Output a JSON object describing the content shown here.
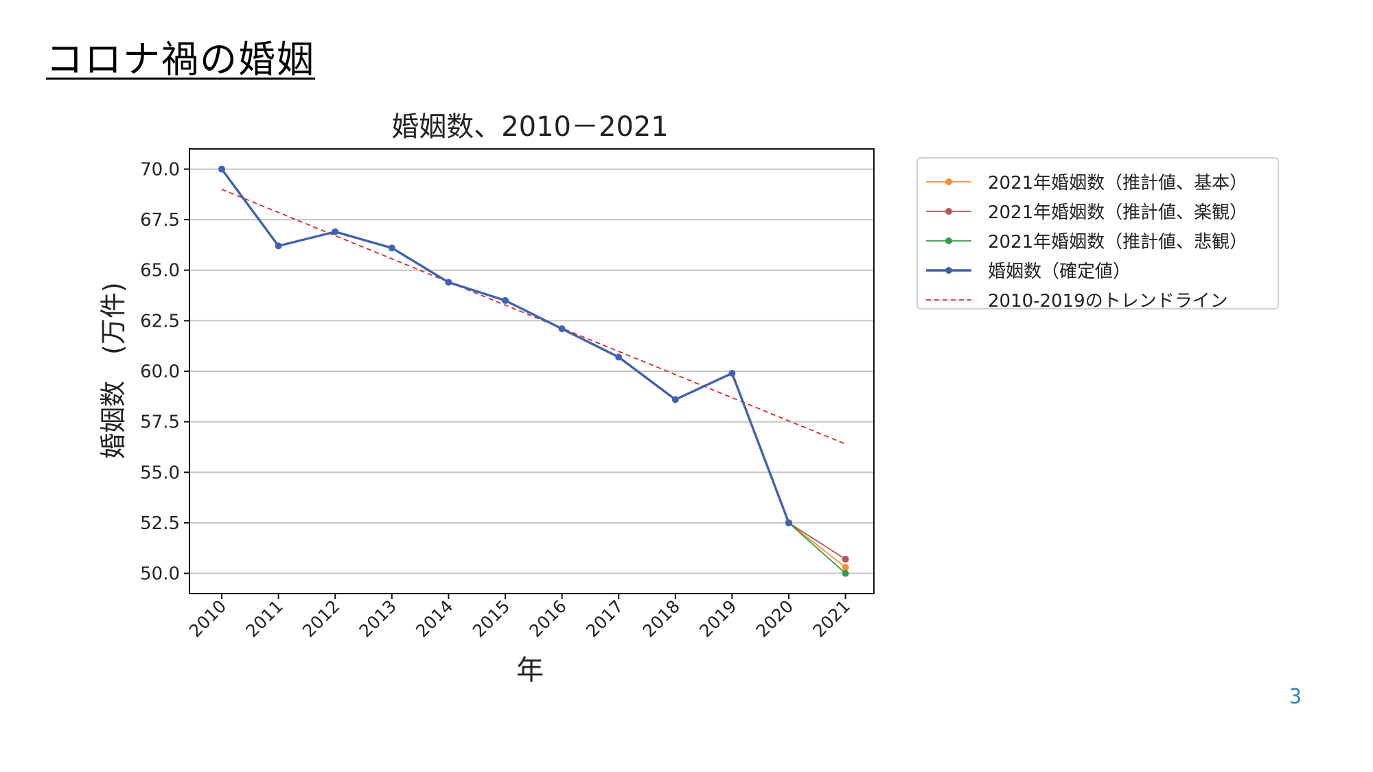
{
  "slide": {
    "title": "コロナ禍の婚姻",
    "page_number": "3"
  },
  "colors": {
    "confirmed": "#4062ae",
    "basic": "#f0922e",
    "optimistic": "#b5565a",
    "pessimistic": "#3a9a45",
    "trend": "#e0242a",
    "grid": "#c4c4c4"
  },
  "chart_data": {
    "type": "line",
    "title": "婚姻数、2010－2021",
    "xlabel": "年",
    "ylabel": "婚姻数　(万件)",
    "categories": [
      "2010",
      "2011",
      "2012",
      "2013",
      "2014",
      "2015",
      "2016",
      "2017",
      "2018",
      "2019",
      "2020",
      "2021"
    ],
    "ylim": [
      49.0,
      71.0
    ],
    "yticks": [
      "70.0",
      "67.5",
      "65.0",
      "62.5",
      "60.0",
      "57.5",
      "55.0",
      "52.5",
      "50.0"
    ],
    "grid": "horizontal",
    "legend_position": "outside upper right",
    "series": [
      {
        "name": "2021年婚姻数（推計値、基本）",
        "key": "basic",
        "x": [
          "2020",
          "2021"
        ],
        "values": [
          52.5,
          50.3
        ]
      },
      {
        "name": "2021年婚姻数（推計値、楽観）",
        "key": "optimistic",
        "x": [
          "2020",
          "2021"
        ],
        "values": [
          52.5,
          50.7
        ]
      },
      {
        "name": "2021年婚姻数（推計値、悲観）",
        "key": "pessimistic",
        "x": [
          "2020",
          "2021"
        ],
        "values": [
          52.5,
          50.0
        ]
      },
      {
        "name": "婚姻数（確定値）",
        "key": "confirmed",
        "x": [
          "2010",
          "2011",
          "2012",
          "2013",
          "2014",
          "2015",
          "2016",
          "2017",
          "2018",
          "2019",
          "2020"
        ],
        "values": [
          70.0,
          66.2,
          66.9,
          66.1,
          64.4,
          63.5,
          62.1,
          60.7,
          58.6,
          59.9,
          52.5
        ]
      },
      {
        "name": "2010-2019のトレンドライン",
        "key": "trend",
        "x": [
          "2010",
          "2021"
        ],
        "values": [
          69.0,
          56.4
        ]
      }
    ]
  }
}
